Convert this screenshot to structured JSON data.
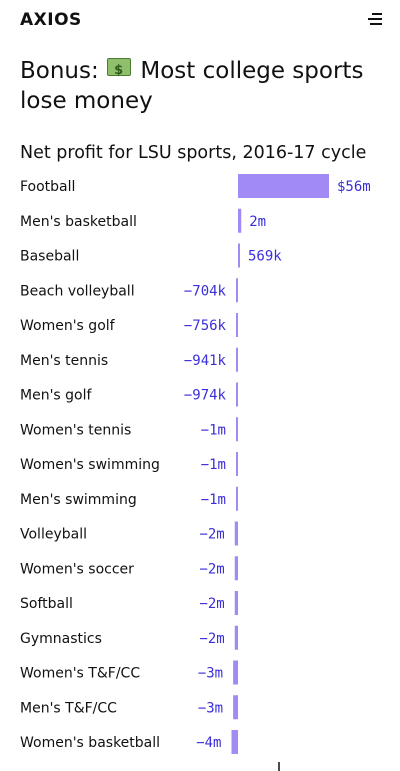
{
  "header": {
    "logo": "AXIOS",
    "menu_icon": "hamburger-menu-icon"
  },
  "headline": {
    "prefix": "Bonus:",
    "emoji": "money-emoji",
    "text": "Most college sports lose money"
  },
  "chart_data": {
    "type": "bar",
    "orientation": "horizontal",
    "title": "Net profit for LSU sports, 2016-17 cycle",
    "bar_color": "#a18af3",
    "label_color": "#3b2fd9",
    "categories": [
      "Football",
      "Men's basketball",
      "Baseball",
      "Beach volleyball",
      "Women's golf",
      "Men's tennis",
      "Men's golf",
      "Women's tennis",
      "Women's swimming",
      "Men's swimming",
      "Volleyball",
      "Women's soccer",
      "Softball",
      "Gymnastics",
      "Women's T&F/CC",
      "Men's T&F/CC",
      "Women's basketball"
    ],
    "values": [
      56000000,
      2000000,
      569000,
      -704000,
      -756000,
      -941000,
      -974000,
      -1000000,
      -1000000,
      -1000000,
      -2000000,
      -2000000,
      -2000000,
      -2000000,
      -3000000,
      -3000000,
      -4000000
    ],
    "value_labels": [
      "$56m",
      "2m",
      "569k",
      "−704k",
      "−756k",
      "−941k",
      "−974k",
      "−1m",
      "−1m",
      "−1m",
      "−2m",
      "−2m",
      "−2m",
      "−2m",
      "−3m",
      "−3m",
      "−4m"
    ]
  }
}
